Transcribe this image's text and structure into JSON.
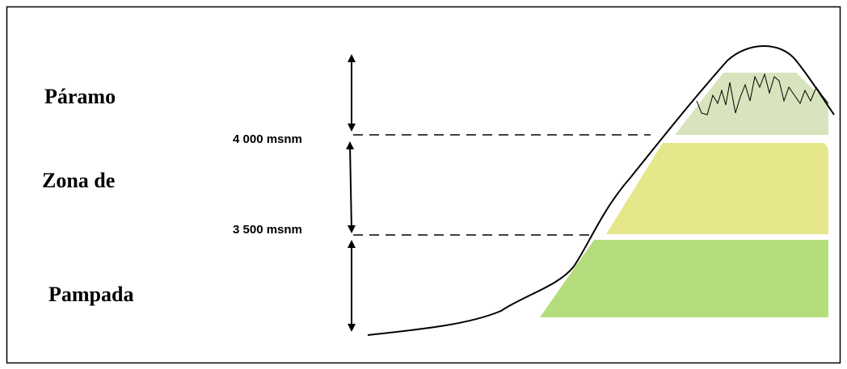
{
  "zones": [
    {
      "label": "Páramo"
    },
    {
      "label": "Zona de"
    },
    {
      "label": "Pampada"
    }
  ],
  "boundaries": [
    {
      "label": "4 000 msnm"
    },
    {
      "label": "3 500 msnm"
    }
  ]
}
